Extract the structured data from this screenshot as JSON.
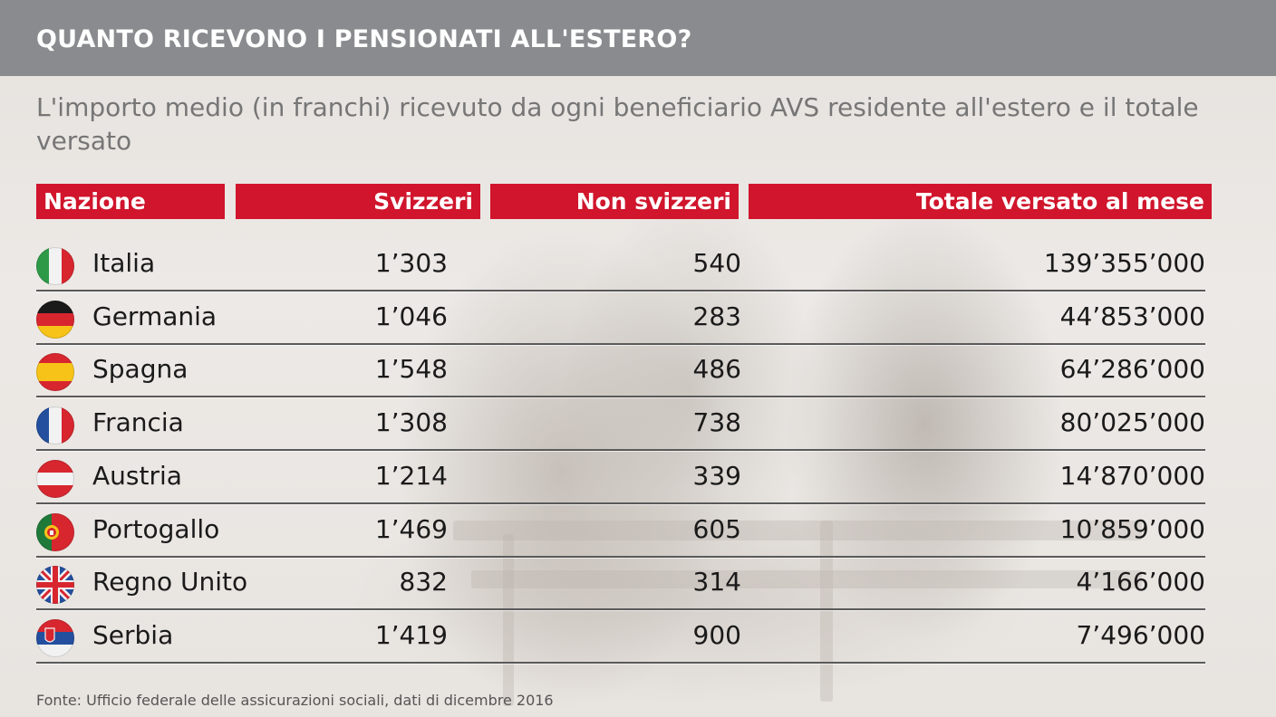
{
  "title": "QUANTO RICEVONO I PENSIONATI ALL'ESTERO?",
  "subtitle": "L'importo medio (in franchi) ricevuto da ogni beneficiario AVS residente all'estero e il totale versato",
  "source": "Fonte: Ufficio federale delle assicurazioni sociali, dati di dicembre 2016",
  "colors": {
    "header": "#d0152c",
    "topbar": "#8a8b8e"
  },
  "chart_data": {
    "type": "table",
    "columns": [
      "Nazione",
      "Svizzeri",
      "Non svizzeri",
      "Totale versato al mese"
    ],
    "rows": [
      {
        "country": "Italia",
        "flag": "italy-flag",
        "svizzeri": "1’303",
        "non_svizzeri": "540",
        "totale": "139’355’000"
      },
      {
        "country": "Germania",
        "flag": "germany-flag",
        "svizzeri": "1’046",
        "non_svizzeri": "283",
        "totale": "44’853’000"
      },
      {
        "country": "Spagna",
        "flag": "spain-flag",
        "svizzeri": "1’548",
        "non_svizzeri": "486",
        "totale": "64’286’000"
      },
      {
        "country": "Francia",
        "flag": "france-flag",
        "svizzeri": "1’308",
        "non_svizzeri": "738",
        "totale": "80’025’000"
      },
      {
        "country": "Austria",
        "flag": "austria-flag",
        "svizzeri": "1’214",
        "non_svizzeri": "339",
        "totale": "14’870’000"
      },
      {
        "country": "Portogallo",
        "flag": "portugal-flag",
        "svizzeri": "1’469",
        "non_svizzeri": "605",
        "totale": "10’859’000"
      },
      {
        "country": "Regno Unito",
        "flag": "uk-flag",
        "svizzeri": "832",
        "non_svizzeri": "314",
        "totale": "4’166’000"
      },
      {
        "country": "Serbia",
        "flag": "serbia-flag",
        "svizzeri": "1’419",
        "non_svizzeri": "900",
        "totale": "7’496’000"
      }
    ]
  }
}
